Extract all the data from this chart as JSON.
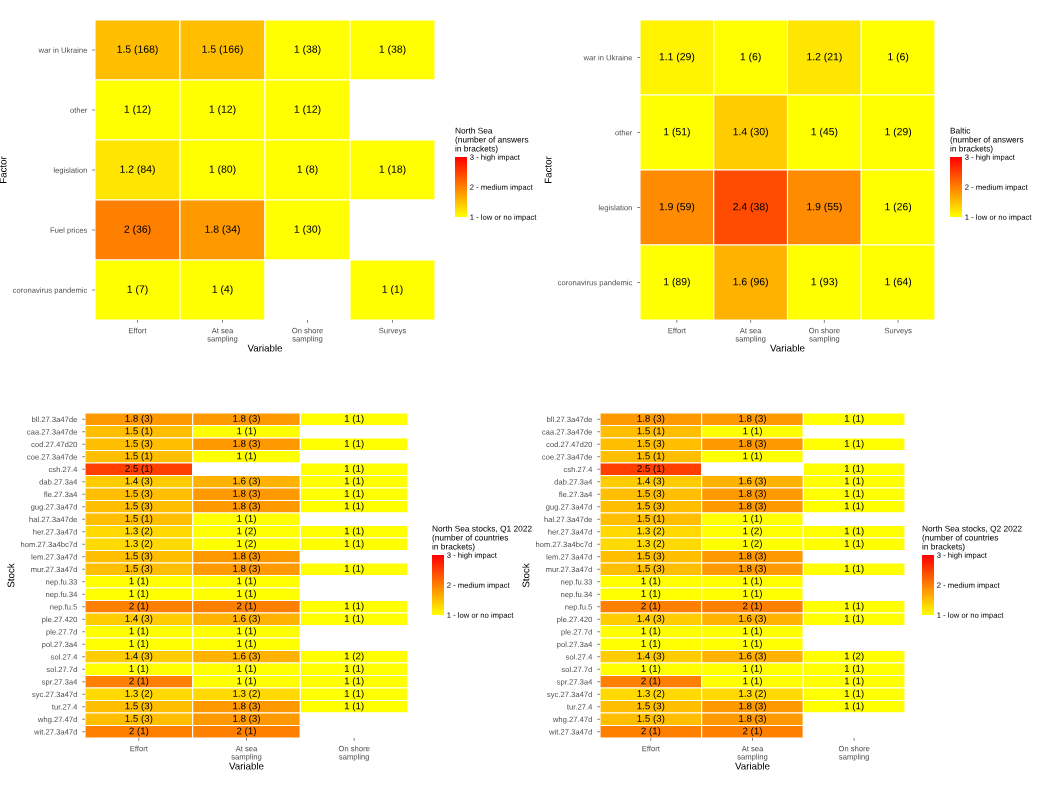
{
  "chart_data": [
    {
      "type": "heatmap",
      "xlabel": "Variable",
      "ylabel": "Factor",
      "clabel": "North Sea\n(number of answers\nin brackets)",
      "categories": [
        "Effort",
        "At sea\nsampling",
        "On shore\nsampling",
        "Surveys"
      ],
      "y_categories": [
        "war in Ukraine",
        "other",
        "legislation",
        "Fuel prices",
        "coronavirus pandemic"
      ],
      "cells": [
        [
          1.5,
          1.5,
          1,
          1
        ],
        [
          1,
          1,
          1,
          null
        ],
        [
          1.2,
          1,
          1,
          1
        ],
        [
          2,
          1.8,
          1,
          null
        ],
        [
          1,
          1,
          null,
          1
        ]
      ],
      "cell_labels": [
        [
          "1.5 (168)",
          "1.5 (166)",
          "1 (38)",
          "1 (38)"
        ],
        [
          "1 (12)",
          "1 (12)",
          "1 (12)",
          null
        ],
        [
          "1.2 (84)",
          "1 (80)",
          "1 (8)",
          "1 (18)"
        ],
        [
          "2 (36)",
          "1.8 (34)",
          "1 (30)",
          null
        ],
        [
          "1 (7)",
          "1 (4)",
          null,
          "1 (1)"
        ]
      ],
      "clim": [
        1,
        3
      ],
      "cticks": [
        {
          "value": 1,
          "label": "1 - low or no impact"
        },
        {
          "value": 2,
          "label": "2 - medium impact"
        },
        {
          "value": 3,
          "label": "3 - high impact"
        }
      ]
    },
    {
      "type": "heatmap",
      "xlabel": "Variable",
      "ylabel": "Factor",
      "clabel": "Baltic\n(number of answers\nin brackets)",
      "categories": [
        "Effort",
        "At sea\nsampling",
        "On shore\nsampling",
        "Surveys"
      ],
      "y_categories": [
        "war in Ukraine",
        "other",
        "legislation",
        "coronavirus pandemic"
      ],
      "cells": [
        [
          1.1,
          1,
          1.2,
          1
        ],
        [
          1,
          1.4,
          1,
          1
        ],
        [
          1.9,
          2.4,
          1.9,
          1
        ],
        [
          1,
          1.6,
          1,
          1
        ]
      ],
      "cell_labels": [
        [
          "1.1 (29)",
          "1 (6)",
          "1.2 (21)",
          "1 (6)"
        ],
        [
          "1 (51)",
          "1.4 (30)",
          "1 (45)",
          "1 (29)"
        ],
        [
          "1.9 (59)",
          "2.4 (38)",
          "1.9 (55)",
          "1 (26)"
        ],
        [
          "1 (89)",
          "1.6 (96)",
          "1 (93)",
          "1 (64)"
        ]
      ],
      "clim": [
        1,
        3
      ],
      "cticks": [
        {
          "value": 1,
          "label": "1 - low or no impact"
        },
        {
          "value": 2,
          "label": "2 - medium impact"
        },
        {
          "value": 3,
          "label": "3 - high impact"
        }
      ]
    },
    {
      "type": "heatmap",
      "xlabel": "Variable",
      "ylabel": "Stock",
      "clabel": "North Sea stocks, Q1 2022\n(number of countries\nin brackets)",
      "categories": [
        "Effort",
        "At sea\nsampling",
        "On shore\nsampling"
      ],
      "y_categories": [
        "bll.27.3a47de",
        "caa.27.3a47de",
        "cod.27.47d20",
        "coe.27.3a47de",
        "csh.27.4",
        "dab.27.3a4",
        "fle.27.3a4",
        "gug.27.3a47d",
        "hal.27.3a47de",
        "her.27.3a47d",
        "hom.27.3a4bc7d",
        "lem.27.3a47d",
        "mur.27.3a47d",
        "nep.fu.33",
        "nep.fu.34",
        "nep.fu.5",
        "ple.27.420",
        "ple.27.7d",
        "pol.27.3a4",
        "sol.27.4",
        "sol.27.7d",
        "spr.27.3a4",
        "syc.27.3a47d",
        "tur.27.4",
        "whg.27.47d",
        "wit.27.3a47d"
      ],
      "cells": [
        [
          1.8,
          1.8,
          1
        ],
        [
          1.5,
          1,
          null
        ],
        [
          1.5,
          1.8,
          1
        ],
        [
          1.5,
          1,
          null
        ],
        [
          2.5,
          null,
          1
        ],
        [
          1.4,
          1.6,
          1
        ],
        [
          1.5,
          1.8,
          1
        ],
        [
          1.5,
          1.8,
          1
        ],
        [
          1.5,
          1,
          null
        ],
        [
          1.3,
          1,
          1
        ],
        [
          1.3,
          1,
          1
        ],
        [
          1.5,
          1.8,
          null
        ],
        [
          1.5,
          1.8,
          1
        ],
        [
          1,
          1,
          null
        ],
        [
          1,
          1,
          null
        ],
        [
          2,
          2,
          1
        ],
        [
          1.4,
          1.6,
          1
        ],
        [
          1,
          1,
          null
        ],
        [
          1,
          1,
          null
        ],
        [
          1.4,
          1.6,
          1
        ],
        [
          1,
          1,
          1
        ],
        [
          2,
          1,
          1
        ],
        [
          1.3,
          1.3,
          1
        ],
        [
          1.5,
          1.8,
          1
        ],
        [
          1.5,
          1.8,
          null
        ],
        [
          2,
          2,
          null
        ]
      ],
      "cell_labels": [
        [
          "1.8 (3)",
          "1.8 (3)",
          "1 (1)"
        ],
        [
          "1.5 (1)",
          "1 (1)",
          null
        ],
        [
          "1.5 (3)",
          "1.8 (3)",
          "1 (1)"
        ],
        [
          "1.5 (1)",
          "1 (1)",
          null
        ],
        [
          "2.5 (1)",
          null,
          "1 (1)"
        ],
        [
          "1.4 (3)",
          "1.6 (3)",
          "1 (1)"
        ],
        [
          "1.5 (3)",
          "1.8 (3)",
          "1 (1)"
        ],
        [
          "1.5 (3)",
          "1.8 (3)",
          "1 (1)"
        ],
        [
          "1.5 (1)",
          "1 (1)",
          null
        ],
        [
          "1.3 (2)",
          "1 (2)",
          "1 (1)"
        ],
        [
          "1.3 (2)",
          "1 (2)",
          "1 (1)"
        ],
        [
          "1.5 (3)",
          "1.8 (3)",
          null
        ],
        [
          "1.5 (3)",
          "1.8 (3)",
          "1 (1)"
        ],
        [
          "1 (1)",
          "1 (1)",
          null
        ],
        [
          "1 (1)",
          "1 (1)",
          null
        ],
        [
          "2 (1)",
          "2 (1)",
          "1 (1)"
        ],
        [
          "1.4 (3)",
          "1.6 (3)",
          "1 (1)"
        ],
        [
          "1 (1)",
          "1 (1)",
          null
        ],
        [
          "1 (1)",
          "1 (1)",
          null
        ],
        [
          "1.4 (3)",
          "1.6 (3)",
          "1 (2)"
        ],
        [
          "1 (1)",
          "1 (1)",
          "1 (1)"
        ],
        [
          "2 (1)",
          "1 (1)",
          "1 (1)"
        ],
        [
          "1.3 (2)",
          "1.3 (2)",
          "1 (1)"
        ],
        [
          "1.5 (3)",
          "1.8 (3)",
          "1 (1)"
        ],
        [
          "1.5 (3)",
          "1.8 (3)",
          null
        ],
        [
          "2 (1)",
          "2 (1)",
          null
        ]
      ],
      "clim": [
        1,
        3
      ],
      "cticks": [
        {
          "value": 1,
          "label": "1 - low or no impact"
        },
        {
          "value": 2,
          "label": "2 - medium impact"
        },
        {
          "value": 3,
          "label": "3 - high impact"
        }
      ]
    },
    {
      "type": "heatmap",
      "xlabel": "Variable",
      "ylabel": "Stock",
      "clabel": "North Sea stocks, Q2 2022\n(number of countries\nin brackets)",
      "categories": [
        "Effort",
        "At sea\nsampling",
        "On shore\nsampling"
      ],
      "y_categories": [
        "bll.27.3a47de",
        "caa.27.3a47de",
        "cod.27.47d20",
        "coe.27.3a47de",
        "csh.27.4",
        "dab.27.3a4",
        "fle.27.3a4",
        "gug.27.3a47d",
        "hal.27.3a47de",
        "her.27.3a47d",
        "hom.27.3a4bc7d",
        "lem.27.3a47d",
        "mur.27.3a47d",
        "nep.fu.33",
        "nep.fu.34",
        "nep.fu.5",
        "ple.27.420",
        "ple.27.7d",
        "pol.27.3a4",
        "sol.27.4",
        "sol.27.7d",
        "spr.27.3a4",
        "syc.27.3a47d",
        "tur.27.4",
        "whg.27.47d",
        "wit.27.3a47d"
      ],
      "cells": [
        [
          1.8,
          1.8,
          1
        ],
        [
          1.5,
          1,
          null
        ],
        [
          1.5,
          1.8,
          1
        ],
        [
          1.5,
          1,
          null
        ],
        [
          2.5,
          null,
          1
        ],
        [
          1.4,
          1.6,
          1
        ],
        [
          1.5,
          1.8,
          1
        ],
        [
          1.5,
          1.8,
          1
        ],
        [
          1.5,
          1,
          null
        ],
        [
          1.3,
          1,
          1
        ],
        [
          1.3,
          1,
          1
        ],
        [
          1.5,
          1.8,
          null
        ],
        [
          1.5,
          1.8,
          1
        ],
        [
          1,
          1,
          null
        ],
        [
          1,
          1,
          null
        ],
        [
          2,
          2,
          1
        ],
        [
          1.4,
          1.6,
          1
        ],
        [
          1,
          1,
          null
        ],
        [
          1,
          1,
          null
        ],
        [
          1.4,
          1.6,
          1
        ],
        [
          1,
          1,
          1
        ],
        [
          2,
          1,
          1
        ],
        [
          1.3,
          1.3,
          1
        ],
        [
          1.5,
          1.8,
          1
        ],
        [
          1.5,
          1.8,
          null
        ],
        [
          2,
          2,
          null
        ]
      ],
      "cell_labels": [
        [
          "1.8 (3)",
          "1.8 (3)",
          "1 (1)"
        ],
        [
          "1.5 (1)",
          "1 (1)",
          null
        ],
        [
          "1.5 (3)",
          "1.8 (3)",
          "1 (1)"
        ],
        [
          "1.5 (1)",
          "1 (1)",
          null
        ],
        [
          "2.5 (1)",
          null,
          "1 (1)"
        ],
        [
          "1.4 (3)",
          "1.6 (3)",
          "1 (1)"
        ],
        [
          "1.5 (3)",
          "1.8 (3)",
          "1 (1)"
        ],
        [
          "1.5 (3)",
          "1.8 (3)",
          "1 (1)"
        ],
        [
          "1.5 (1)",
          "1 (1)",
          null
        ],
        [
          "1.3 (2)",
          "1 (2)",
          "1 (1)"
        ],
        [
          "1.3 (2)",
          "1 (2)",
          "1 (1)"
        ],
        [
          "1.5 (3)",
          "1.8 (3)",
          null
        ],
        [
          "1.5 (3)",
          "1.8 (3)",
          "1 (1)"
        ],
        [
          "1 (1)",
          "1 (1)",
          null
        ],
        [
          "1 (1)",
          "1 (1)",
          null
        ],
        [
          "2 (1)",
          "2 (1)",
          "1 (1)"
        ],
        [
          "1.4 (3)",
          "1.6 (3)",
          "1 (1)"
        ],
        [
          "1 (1)",
          "1 (1)",
          null
        ],
        [
          "1 (1)",
          "1 (1)",
          null
        ],
        [
          "1.4 (3)",
          "1.6 (3)",
          "1 (2)"
        ],
        [
          "1 (1)",
          "1 (1)",
          "1 (1)"
        ],
        [
          "2 (1)",
          "1 (1)",
          "1 (1)"
        ],
        [
          "1.3 (2)",
          "1.3 (2)",
          "1 (1)"
        ],
        [
          "1.5 (3)",
          "1.8 (3)",
          "1 (1)"
        ],
        [
          "1.5 (3)",
          "1.8 (3)",
          null
        ],
        [
          "2 (1)",
          "2 (1)",
          null
        ]
      ],
      "clim": [
        1,
        3
      ],
      "cticks": [
        {
          "value": 1,
          "label": "1 - low or no impact"
        },
        {
          "value": 2,
          "label": "2 - medium impact"
        },
        {
          "value": 3,
          "label": "3 - high impact"
        }
      ]
    }
  ]
}
